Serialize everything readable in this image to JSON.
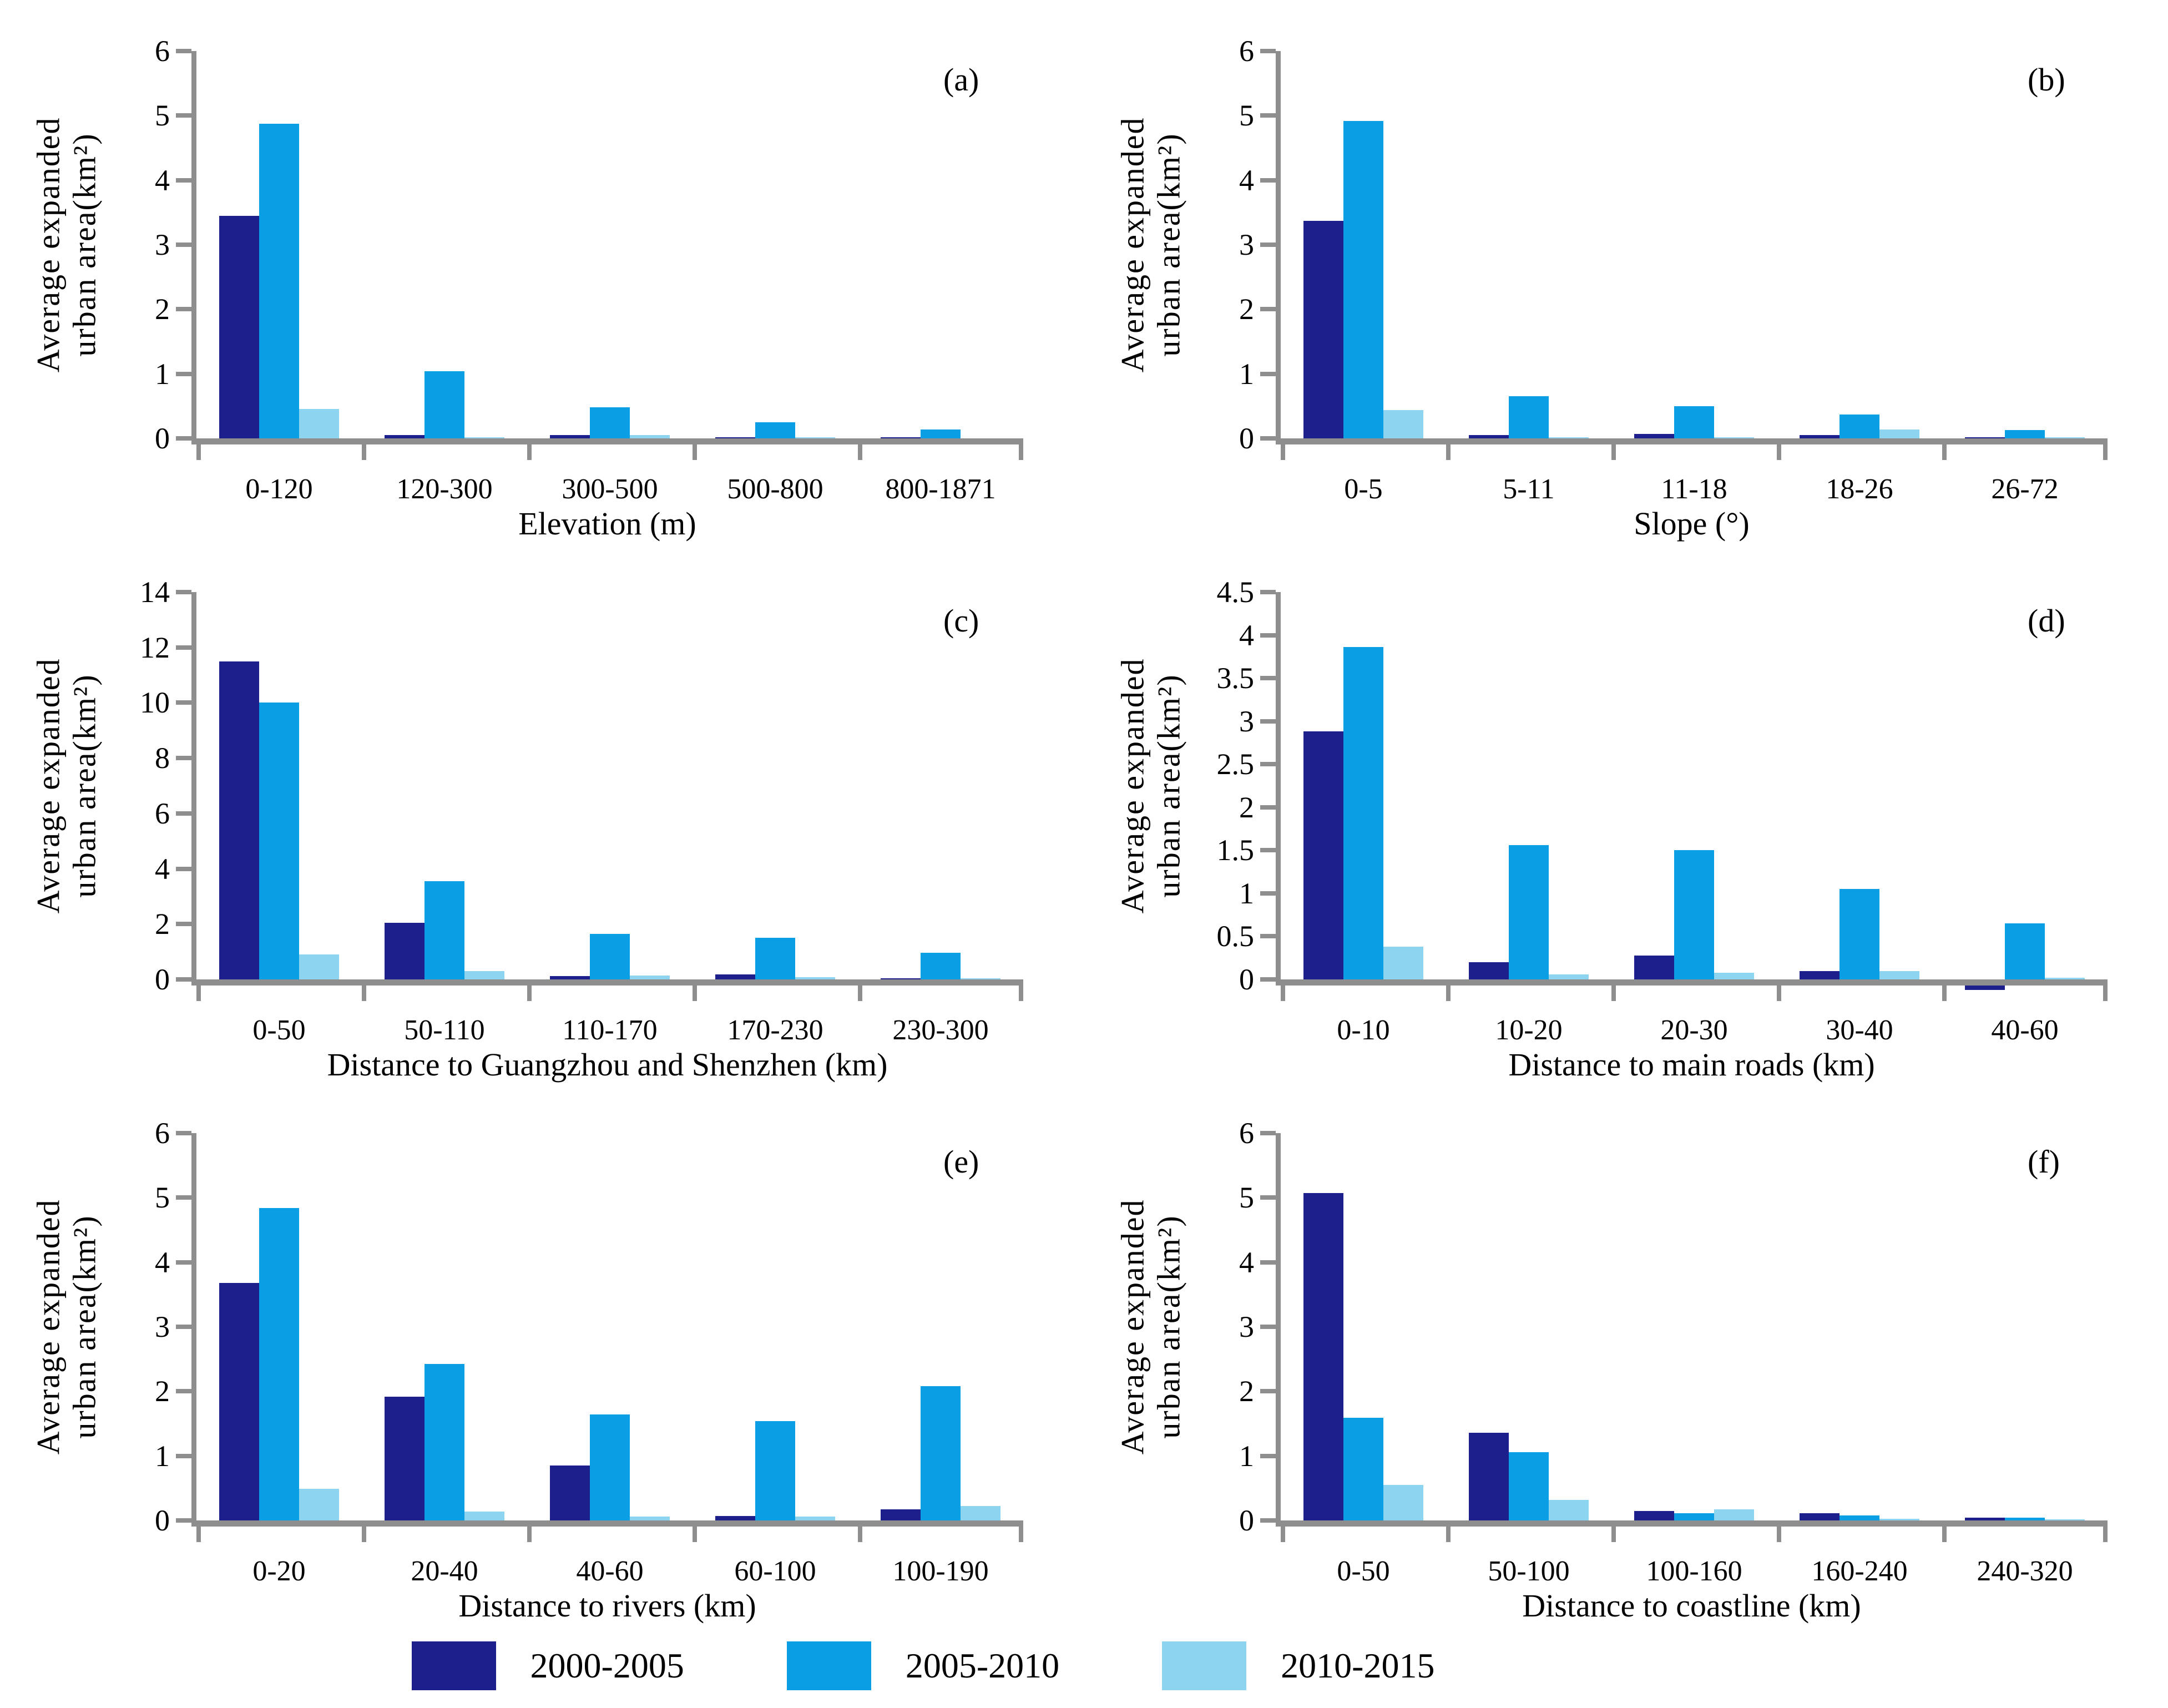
{
  "figure": {
    "ylabel_line1": "Average expanded",
    "ylabel_line2": "urban area(km²)",
    "axis_color": "#8E8E8E",
    "series_names": [
      "2000-2005",
      "2005-2010",
      "2010-2015"
    ],
    "series_colors": [
      "#1C1F8C",
      "#0A9FE4",
      "#8DD4F1"
    ]
  },
  "legend": {
    "items": [
      {
        "label": "2000-2005",
        "color": "#1C1F8C"
      },
      {
        "label": "2005-2010",
        "color": "#0A9FE4"
      },
      {
        "label": "2010-2015",
        "color": "#8DD4F1"
      }
    ]
  },
  "chart_data": [
    {
      "type": "bar",
      "panel_label": "(a)",
      "xlabel": "Elevation (m)",
      "ylabel": "Average expanded urban area(km²)",
      "ylim": [
        0,
        6
      ],
      "ystep": 1,
      "categories": [
        "0-120",
        "120-300",
        "300-500",
        "500-800",
        "800-1871"
      ],
      "series": [
        {
          "name": "2000-2005",
          "values": [
            3.45,
            0.05,
            0.05,
            0.01,
            0.01
          ]
        },
        {
          "name": "2005-2010",
          "values": [
            4.87,
            1.04,
            0.48,
            0.25,
            0.14
          ]
        },
        {
          "name": "2010-2015",
          "values": [
            0.46,
            0.01,
            0.05,
            0.01,
            0.0
          ]
        }
      ]
    },
    {
      "type": "bar",
      "panel_label": "(b)",
      "xlabel": "Slope (°)",
      "ylabel": "Average expanded urban area(km²)",
      "ylim": [
        0,
        6
      ],
      "ystep": 1,
      "categories": [
        "0-5",
        "5-11",
        "11-18",
        "18-26",
        "26-72"
      ],
      "series": [
        {
          "name": "2000-2005",
          "values": [
            3.37,
            0.05,
            0.07,
            0.05,
            0.02
          ]
        },
        {
          "name": "2005-2010",
          "values": [
            4.92,
            0.65,
            0.5,
            0.37,
            0.13
          ]
        },
        {
          "name": "2010-2015",
          "values": [
            0.44,
            0.01,
            0.02,
            0.14,
            0.01
          ]
        }
      ]
    },
    {
      "type": "bar",
      "panel_label": "(c)",
      "xlabel": "Distance to Guangzhou and Shenzhen (km)",
      "ylabel": "Average expanded urban area(km²)",
      "ylim": [
        0,
        14
      ],
      "ystep": 2,
      "categories": [
        "0-50",
        "50-110",
        "110-170",
        "170-230",
        "230-300"
      ],
      "series": [
        {
          "name": "2000-2005",
          "values": [
            11.5,
            2.05,
            0.12,
            0.18,
            0.02
          ]
        },
        {
          "name": "2005-2010",
          "values": [
            10.0,
            3.55,
            1.65,
            1.5,
            0.97
          ]
        },
        {
          "name": "2010-2015",
          "values": [
            0.9,
            0.3,
            0.14,
            0.08,
            0.02
          ]
        }
      ]
    },
    {
      "type": "bar",
      "panel_label": "(d)",
      "xlabel": "Distance  to  main  roads (km)",
      "ylabel": "Average expanded urban area(km²)",
      "ylim": [
        0,
        4.5
      ],
      "ystep": 0.5,
      "categories": [
        "0-10",
        "10-20",
        "20-30",
        "30-40",
        "40-60"
      ],
      "series": [
        {
          "name": "2000-2005",
          "values": [
            2.88,
            0.2,
            0.28,
            0.1,
            -0.05
          ]
        },
        {
          "name": "2005-2010",
          "values": [
            3.86,
            1.56,
            1.5,
            1.05,
            0.65
          ]
        },
        {
          "name": "2010-2015",
          "values": [
            0.38,
            0.06,
            0.08,
            0.1,
            0.02
          ]
        }
      ]
    },
    {
      "type": "bar",
      "panel_label": "(e)",
      "xlabel": "Distance  to  rivers (km)",
      "ylabel": "Average expanded urban area(km²)",
      "ylim": [
        0,
        6
      ],
      "ystep": 1,
      "categories": [
        "0-20",
        "20-40",
        "40-60",
        "60-100",
        "100-190"
      ],
      "series": [
        {
          "name": "2000-2005",
          "values": [
            3.68,
            1.92,
            0.85,
            0.07,
            0.17
          ]
        },
        {
          "name": "2005-2010",
          "values": [
            4.84,
            2.42,
            1.64,
            1.54,
            2.08
          ]
        },
        {
          "name": "2010-2015",
          "values": [
            0.49,
            0.14,
            0.06,
            0.06,
            0.22
          ]
        }
      ]
    },
    {
      "type": "bar",
      "panel_label": "(f)",
      "xlabel": "Distance  to  coastline (km)",
      "ylabel": "Average expanded urban area(km²)",
      "ylim": [
        0,
        6
      ],
      "ystep": 1,
      "categories": [
        "0-50",
        "50-100",
        "100-160",
        "160-240",
        "240-320"
      ],
      "series": [
        {
          "name": "2000-2005",
          "values": [
            5.07,
            1.36,
            0.15,
            0.11,
            0.04
          ]
        },
        {
          "name": "2005-2010",
          "values": [
            1.59,
            1.06,
            0.11,
            0.08,
            0.04
          ]
        },
        {
          "name": "2010-2015",
          "values": [
            0.55,
            0.32,
            0.17,
            0.03,
            0.02
          ]
        }
      ]
    }
  ]
}
